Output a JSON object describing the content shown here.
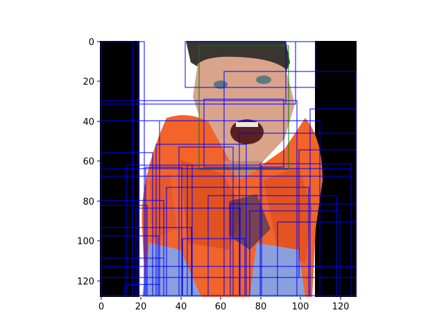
{
  "figure": {
    "x_ticks": [
      "0",
      "20",
      "40",
      "60",
      "80",
      "100",
      "120"
    ],
    "y_ticks": [
      "0",
      "20",
      "40",
      "60",
      "80",
      "100",
      "120"
    ],
    "image": {
      "subject": "man with open mouth in orange shirt, pixelated 128x128",
      "colors": {
        "background_left": "#000000",
        "background_right": "#000000",
        "backdrop": "#ffffff",
        "shirt": "#f2642a",
        "shirt_dark": "#d94a1c",
        "skin": "#d9a48a",
        "hair": "#3a3530",
        "pants": "#8aa0dc"
      }
    },
    "box_colors": {
      "detections": "#0000ff",
      "face": "#008000"
    }
  }
}
